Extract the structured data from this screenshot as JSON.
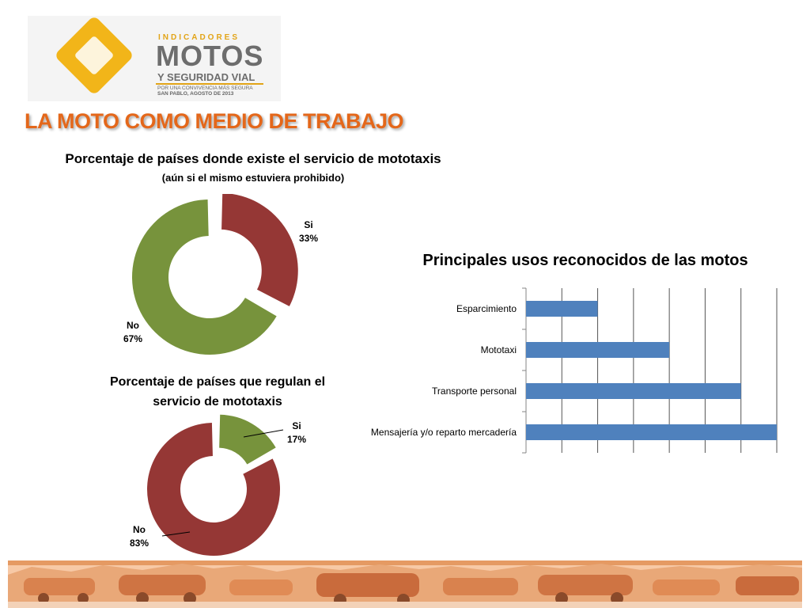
{
  "logo": {
    "line1": "INDICADORES",
    "line2": "MOTOS",
    "line3": "Y SEGURIDAD VIAL",
    "line4": "POR UNA CONVIVENCIA MÁS SEGURA",
    "line5": "SAN PABLO,  AGOSTO  DE  2013"
  },
  "page_title": "LA MOTO COMO MEDIO DE TRABAJO",
  "colors": {
    "title_orange": "#e4671a",
    "red": "#953735",
    "green": "#77933c",
    "blue": "#4f81bd",
    "logo_yellow": "#f2b519"
  },
  "chart_data": [
    {
      "type": "pie",
      "title": "Porcentaje de países donde existe el servicio de mototaxis",
      "subtitle": "(aún si el mismo estuviera prohibido)",
      "slices": [
        {
          "name": "Si",
          "value": 33,
          "label": "33%"
        },
        {
          "name": "No",
          "value": 67,
          "label": "67%"
        }
      ]
    },
    {
      "type": "pie",
      "title": "Porcentaje de países que regulan el servicio de mototaxis",
      "slices": [
        {
          "name": "Si",
          "value": 17,
          "label": "17%"
        },
        {
          "name": "No",
          "value": 83,
          "label": "83%"
        }
      ]
    },
    {
      "type": "bar",
      "orientation": "horizontal",
      "title": "Principales usos reconocidos de las motos",
      "categories": [
        "Esparcimiento",
        "Mototaxi",
        "Transporte personal",
        "Mensajería y/o reparto mercadería"
      ],
      "values": [
        2,
        4,
        6,
        7
      ],
      "xlim": [
        0,
        7
      ],
      "grid": true,
      "legend": "none"
    }
  ]
}
